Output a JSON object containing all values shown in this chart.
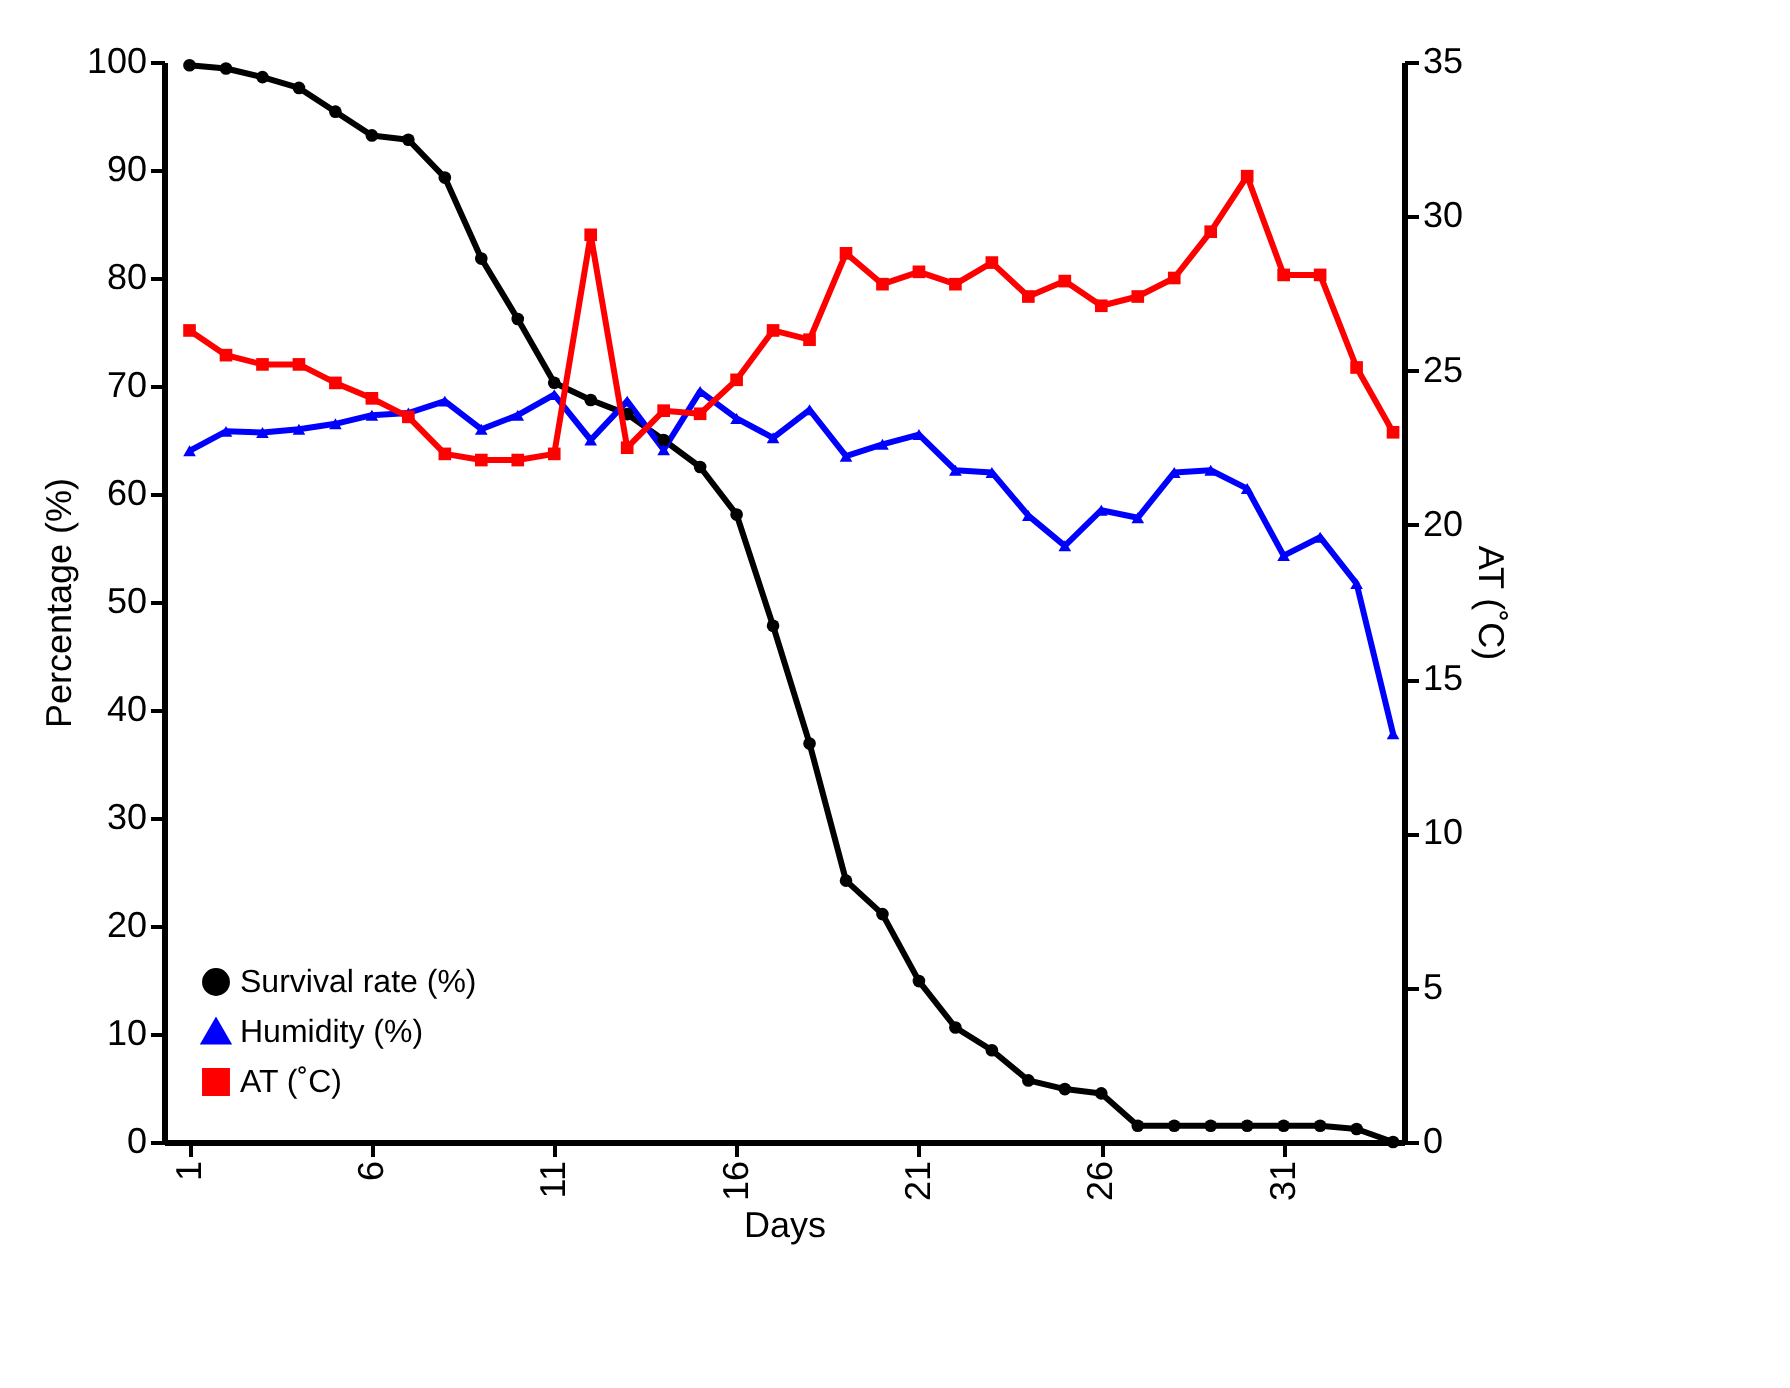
{
  "chart_data": {
    "type": "line",
    "xlabel": "Days",
    "ylabel": "Percentage (%)",
    "y2label": "AT (˚C)",
    "x": [
      1,
      2,
      3,
      4,
      5,
      6,
      7,
      8,
      9,
      10,
      11,
      12,
      13,
      14,
      15,
      16,
      17,
      18,
      19,
      20,
      21,
      22,
      23,
      24,
      25,
      26,
      27,
      28,
      29,
      30,
      31,
      32,
      33,
      34
    ],
    "series": [
      {
        "name": "Survival rate (%)",
        "color": "#000000",
        "marker": "circle",
        "values": [
          99.7,
          99.4,
          98.6,
          97.6,
          95.4,
          93.2,
          92.8,
          89.3,
          81.8,
          76.2,
          70.3,
          68.7,
          67.4,
          65,
          62.5,
          58.1,
          47.8,
          36.9,
          24.2,
          21.1,
          14.9,
          10.6,
          8.5,
          5.7,
          4.9,
          4.5,
          1.5,
          1.5,
          1.5,
          1.5,
          1.5,
          1.5,
          1.2,
          0
        ]
      },
      {
        "name": "Humidity (%)",
        "color": "#0000ff",
        "marker": "triangle",
        "values": [
          64,
          65.8,
          65.7,
          66,
          66.5,
          67.3,
          67.5,
          68.6,
          66,
          67.3,
          69.2,
          65,
          68.6,
          64.1,
          69.5,
          67,
          65.2,
          67.8,
          63.5,
          64.6,
          65.5,
          62.2,
          62,
          58,
          55.2,
          58.5,
          57.8,
          62,
          62.2,
          60.5,
          54.3,
          56,
          51.7,
          37.8
        ]
      },
      {
        "name": "AT (˚C)",
        "color": "#ff0000",
        "marker": "square",
        "axis": "y2",
        "values": [
          26.3,
          25.5,
          25.2,
          25.2,
          24.6,
          24.1,
          23.5,
          22.3,
          22.1,
          22.1,
          22.3,
          29.4,
          22.5,
          23.7,
          23.6,
          24.7,
          26.3,
          26,
          28.8,
          27.8,
          28.2,
          27.8,
          28.5,
          27.4,
          27.9,
          27.1,
          27.4,
          28,
          29.5,
          31.3,
          28.1,
          28.1,
          25.1,
          23
        ]
      }
    ],
    "xlim": [
      0.3,
      34.3
    ],
    "xticks": [
      1,
      6,
      11,
      16,
      21,
      26,
      31
    ],
    "ylim": [
      0,
      100
    ],
    "yticks": [
      0,
      10,
      20,
      30,
      40,
      50,
      60,
      70,
      80,
      90,
      100
    ],
    "y2lim": [
      0,
      35
    ],
    "y2ticks": [
      0,
      5,
      10,
      15,
      20,
      25,
      30,
      35
    ],
    "legend": "bottom left",
    "grid": false,
    "line_style": "solid"
  }
}
